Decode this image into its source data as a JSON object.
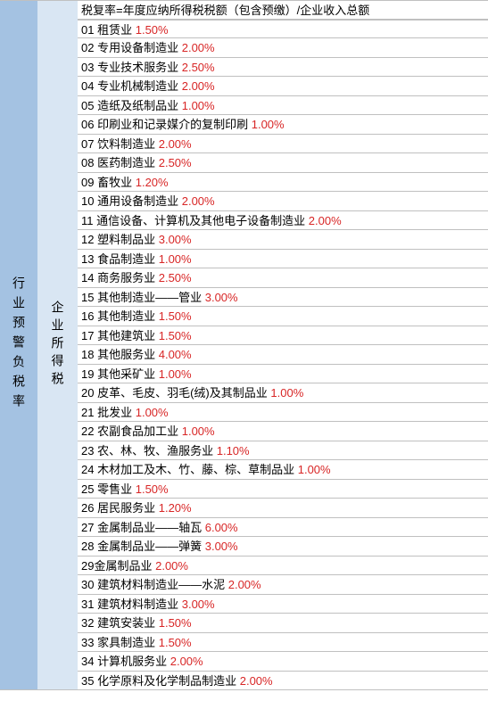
{
  "col1_label": "行业预警负税率",
  "col2_label": "企业所得税",
  "header_formula": "税复率=年度应纳所得税税额（包含预缴）/企业收入总额",
  "rows": [
    {
      "num": "01",
      "label": "租赁业",
      "rate": "1.50%"
    },
    {
      "num": "02",
      "label": "专用设备制造业",
      "rate": "2.00%"
    },
    {
      "num": "03",
      "label": "专业技术服务业",
      "rate": "2.50%"
    },
    {
      "num": "04",
      "label": "专业机械制造业",
      "rate": "2.00%"
    },
    {
      "num": "05",
      "label": "造纸及纸制品业",
      "rate": "1.00%"
    },
    {
      "num": "06",
      "label": "印刷业和记录媒介的复制印刷",
      "rate": "1.00%"
    },
    {
      "num": "07",
      "label": "饮料制造业",
      "rate": "2.00%"
    },
    {
      "num": "08",
      "label": "医药制造业",
      "rate": "2.50%"
    },
    {
      "num": "09",
      "label": "畜牧业",
      "rate": "1.20%"
    },
    {
      "num": "10",
      "label": "通用设备制造业",
      "rate": "2.00%"
    },
    {
      "num": "11",
      "label": "通信设备、计算机及其他电子设备制造业",
      "rate": "2.00%"
    },
    {
      "num": "12",
      "label": "塑料制品业",
      "rate": "3.00%"
    },
    {
      "num": "13",
      "label": "食品制造业",
      "rate": "1.00%"
    },
    {
      "num": "14",
      "label": "商务服务业",
      "rate": "2.50%"
    },
    {
      "num": "15",
      "label": "其他制造业——管业",
      "rate": "3.00%"
    },
    {
      "num": "16",
      "label": "其他制造业",
      "rate": "1.50%"
    },
    {
      "num": "17",
      "label": "其他建筑业",
      "rate": "1.50%"
    },
    {
      "num": "18",
      "label": "其他服务业",
      "rate": "4.00%"
    },
    {
      "num": "19",
      "label": "其他采矿业",
      "rate": "1.00%"
    },
    {
      "num": "20",
      "label": "皮革、毛皮、羽毛(绒)及其制品业",
      "rate": "1.00%"
    },
    {
      "num": "21",
      "label": "批发业",
      "rate": "1.00%"
    },
    {
      "num": "22",
      "label": "农副食品加工业",
      "rate": "1.00%"
    },
    {
      "num": "23",
      "label": "农、林、牧、渔服务业",
      "rate": "1.10%"
    },
    {
      "num": "24",
      "label": "木材加工及木、竹、藤、棕、草制品业",
      "rate": "1.00%"
    },
    {
      "num": "25",
      "label": "零售业",
      "rate": "1.50%"
    },
    {
      "num": "26",
      "label": "居民服务业",
      "rate": "1.20%"
    },
    {
      "num": "27",
      "label": "金属制品业——轴瓦",
      "rate": "6.00%"
    },
    {
      "num": "28",
      "label": "金属制品业——弹簧",
      "rate": "3.00%"
    },
    {
      "num": "29",
      "label": "金属制品业",
      "rate": "2.00%",
      "nospace": true
    },
    {
      "num": "30",
      "label": "建筑材料制造业——水泥",
      "rate": "2.00%"
    },
    {
      "num": "31",
      "label": "建筑材料制造业",
      "rate": "3.00%"
    },
    {
      "num": "32",
      "label": "建筑安装业",
      "rate": "1.50%"
    },
    {
      "num": "33",
      "label": "家具制造业",
      "rate": "1.50%"
    },
    {
      "num": "34",
      "label": "计算机服务业",
      "rate": "2.00%"
    },
    {
      "num": "35",
      "label": "化学原料及化学制品制造业",
      "rate": "2.00%"
    }
  ],
  "colors": {
    "col1_bg": "#a4c2e2",
    "col2_bg": "#d9e6f3",
    "rate_color": "#d82626",
    "text_color": "#000000",
    "border_color": "#c0c0c0",
    "bg_color": "#ffffff"
  }
}
